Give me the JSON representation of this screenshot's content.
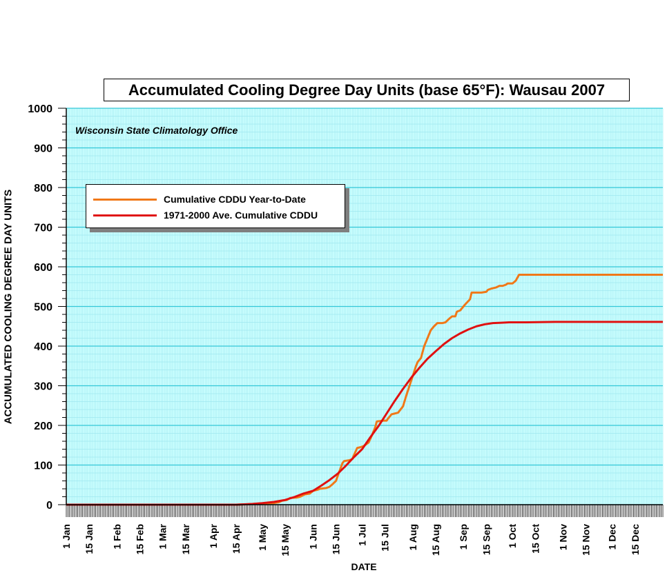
{
  "chart_data": {
    "type": "line",
    "title": "Accumulated Cooling Degree Day Units (base 65°F): Wausau 2007",
    "subtitle": "Wisconsin State Climatology Office",
    "xlabel": "DATE",
    "ylabel": "ACCUMULATED COOLING DEGREE DAY UNITS",
    "ylim": [
      0,
      1000
    ],
    "yticks": [
      0,
      100,
      200,
      300,
      400,
      500,
      600,
      700,
      800,
      900,
      1000
    ],
    "xlim": [
      1,
      366
    ],
    "xtick_labels": [
      {
        "day": 1,
        "label": "1 Jan"
      },
      {
        "day": 15,
        "label": "15 Jan"
      },
      {
        "day": 32,
        "label": "1 Feb"
      },
      {
        "day": 46,
        "label": "15 Feb"
      },
      {
        "day": 60,
        "label": "1 Mar"
      },
      {
        "day": 74,
        "label": "15 Mar"
      },
      {
        "day": 91,
        "label": "1 Apr"
      },
      {
        "day": 105,
        "label": "15 Apr"
      },
      {
        "day": 121,
        "label": "1 May"
      },
      {
        "day": 135,
        "label": "15 May"
      },
      {
        "day": 152,
        "label": "1 Jun"
      },
      {
        "day": 166,
        "label": "15 Jun"
      },
      {
        "day": 182,
        "label": "1 Jul"
      },
      {
        "day": 196,
        "label": "15 Jul"
      },
      {
        "day": 213,
        "label": "1 Aug"
      },
      {
        "day": 227,
        "label": "15 Aug"
      },
      {
        "day": 244,
        "label": "1 Sep"
      },
      {
        "day": 258,
        "label": "15 Sep"
      },
      {
        "day": 274,
        "label": "1 Oct"
      },
      {
        "day": 288,
        "label": "15 Oct"
      },
      {
        "day": 305,
        "label": "1 Nov"
      },
      {
        "day": 319,
        "label": "15 Nov"
      },
      {
        "day": 335,
        "label": "1 Dec"
      },
      {
        "day": 349,
        "label": "15 Dec"
      }
    ],
    "grid": true,
    "legend_position": "upper-left",
    "series": [
      {
        "name": "Cumulative CDDU Year-to-Date",
        "color": "#f07818",
        "x": [
          1,
          105,
          112,
          120,
          128,
          131,
          133,
          136,
          138,
          142,
          144,
          146,
          147,
          150,
          152,
          155,
          156,
          160,
          162,
          164,
          166,
          168,
          170,
          171,
          174,
          176,
          177,
          179,
          181,
          183,
          186,
          188,
          190,
          191,
          195,
          197,
          198,
          200,
          202,
          204,
          207,
          209,
          211,
          213,
          215,
          216,
          218,
          219,
          220,
          222,
          224,
          226,
          228,
          231,
          233,
          235,
          237,
          239,
          240,
          242,
          245,
          248,
          249,
          251,
          254,
          255,
          258,
          259,
          261,
          264,
          266,
          268,
          270,
          271,
          274,
          276,
          278,
          280,
          282,
          366
        ],
        "y": [
          0,
          0,
          1,
          3,
          4,
          6,
          10,
          12,
          17,
          18,
          20,
          24,
          26,
          28,
          35,
          38,
          40,
          42,
          45,
          52,
          60,
          83,
          105,
          110,
          112,
          115,
          125,
          143,
          145,
          148,
          157,
          175,
          195,
          210,
          212,
          212,
          218,
          228,
          230,
          232,
          248,
          275,
          300,
          325,
          350,
          360,
          370,
          385,
          400,
          420,
          440,
          450,
          458,
          458,
          460,
          468,
          475,
          475,
          487,
          490,
          505,
          518,
          535,
          535,
          535,
          535,
          537,
          542,
          545,
          548,
          552,
          552,
          555,
          558,
          558,
          565,
          580,
          580,
          580,
          580
        ]
      },
      {
        "name": "1971-2000 Ave. Cumulative CDDU",
        "color": "#e01010",
        "x": [
          1,
          105,
          115,
          121,
          128,
          135,
          141,
          146,
          152,
          157,
          162,
          167,
          172,
          177,
          182,
          187,
          192,
          197,
          202,
          207,
          212,
          217,
          222,
          227,
          232,
          237,
          242,
          247,
          252,
          257,
          262,
          267,
          272,
          282,
          300,
          366
        ],
        "y": [
          0,
          0,
          2,
          4,
          7,
          12,
          20,
          28,
          35,
          48,
          62,
          78,
          98,
          120,
          140,
          170,
          198,
          230,
          262,
          292,
          320,
          345,
          368,
          387,
          405,
          420,
          432,
          442,
          450,
          455,
          458,
          459,
          460,
          460,
          461,
          461
        ]
      }
    ]
  }
}
